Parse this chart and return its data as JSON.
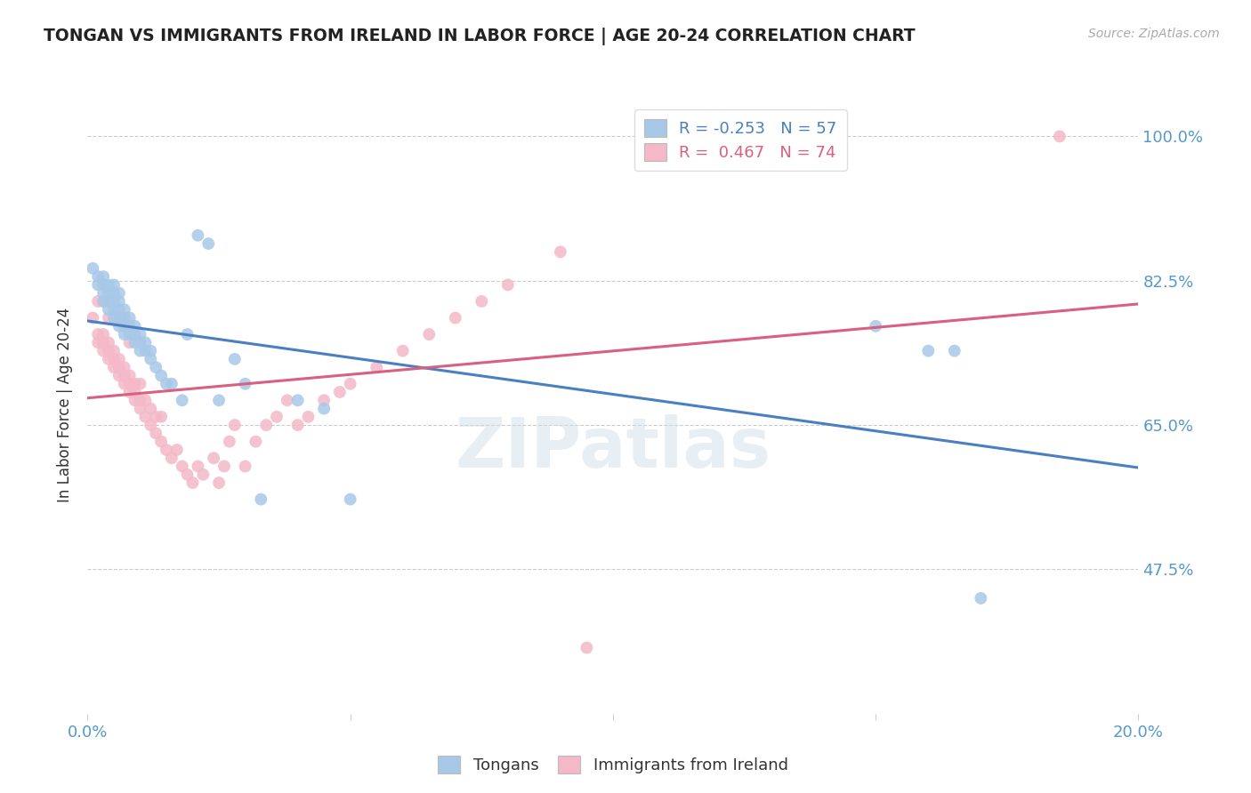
{
  "title": "TONGAN VS IMMIGRANTS FROM IRELAND IN LABOR FORCE | AGE 20-24 CORRELATION CHART",
  "source": "Source: ZipAtlas.com",
  "ylabel": "In Labor Force | Age 20-24",
  "xlim": [
    0.0,
    0.2
  ],
  "ylim": [
    0.3,
    1.05
  ],
  "blue_R": -0.253,
  "blue_N": 57,
  "pink_R": 0.467,
  "pink_N": 74,
  "blue_color": "#a8c8e8",
  "pink_color": "#f4b8c8",
  "blue_line_color": "#4a7fc1",
  "pink_line_color": "#d96080",
  "ytick_vals": [
    1.0,
    0.825,
    0.65,
    0.475
  ],
  "ytick_labels": [
    "100.0%",
    "82.5%",
    "65.0%",
    "47.5%"
  ],
  "blue_scatter_x": [
    0.001,
    0.002,
    0.002,
    0.003,
    0.003,
    0.003,
    0.003,
    0.004,
    0.004,
    0.004,
    0.004,
    0.005,
    0.005,
    0.005,
    0.005,
    0.005,
    0.006,
    0.006,
    0.006,
    0.006,
    0.006,
    0.007,
    0.007,
    0.007,
    0.007,
    0.008,
    0.008,
    0.008,
    0.009,
    0.009,
    0.009,
    0.01,
    0.01,
    0.01,
    0.011,
    0.011,
    0.012,
    0.012,
    0.013,
    0.014,
    0.015,
    0.016,
    0.018,
    0.019,
    0.021,
    0.023,
    0.025,
    0.028,
    0.03,
    0.033,
    0.04,
    0.045,
    0.05,
    0.15,
    0.16,
    0.165,
    0.17
  ],
  "blue_scatter_y": [
    0.84,
    0.82,
    0.83,
    0.8,
    0.81,
    0.82,
    0.83,
    0.79,
    0.8,
    0.81,
    0.82,
    0.78,
    0.79,
    0.8,
    0.81,
    0.82,
    0.77,
    0.78,
    0.79,
    0.8,
    0.81,
    0.76,
    0.77,
    0.78,
    0.79,
    0.76,
    0.77,
    0.78,
    0.75,
    0.76,
    0.77,
    0.74,
    0.75,
    0.76,
    0.74,
    0.75,
    0.73,
    0.74,
    0.72,
    0.71,
    0.7,
    0.7,
    0.68,
    0.76,
    0.88,
    0.87,
    0.68,
    0.73,
    0.7,
    0.56,
    0.68,
    0.67,
    0.56,
    0.77,
    0.74,
    0.74,
    0.44
  ],
  "pink_scatter_x": [
    0.001,
    0.002,
    0.002,
    0.002,
    0.003,
    0.003,
    0.003,
    0.003,
    0.004,
    0.004,
    0.004,
    0.004,
    0.005,
    0.005,
    0.005,
    0.005,
    0.006,
    0.006,
    0.006,
    0.006,
    0.007,
    0.007,
    0.007,
    0.007,
    0.008,
    0.008,
    0.008,
    0.008,
    0.009,
    0.009,
    0.009,
    0.01,
    0.01,
    0.01,
    0.011,
    0.011,
    0.012,
    0.012,
    0.013,
    0.013,
    0.014,
    0.014,
    0.015,
    0.016,
    0.017,
    0.018,
    0.019,
    0.02,
    0.021,
    0.022,
    0.024,
    0.025,
    0.026,
    0.027,
    0.028,
    0.03,
    0.032,
    0.034,
    0.036,
    0.038,
    0.04,
    0.042,
    0.045,
    0.048,
    0.05,
    0.055,
    0.06,
    0.065,
    0.07,
    0.075,
    0.08,
    0.09,
    0.095,
    0.185
  ],
  "pink_scatter_y": [
    0.78,
    0.75,
    0.76,
    0.8,
    0.74,
    0.75,
    0.76,
    0.8,
    0.73,
    0.74,
    0.75,
    0.78,
    0.72,
    0.73,
    0.74,
    0.78,
    0.71,
    0.72,
    0.73,
    0.78,
    0.7,
    0.71,
    0.72,
    0.78,
    0.69,
    0.7,
    0.71,
    0.75,
    0.68,
    0.69,
    0.7,
    0.67,
    0.68,
    0.7,
    0.66,
    0.68,
    0.65,
    0.67,
    0.64,
    0.66,
    0.63,
    0.66,
    0.62,
    0.61,
    0.62,
    0.6,
    0.59,
    0.58,
    0.6,
    0.59,
    0.61,
    0.58,
    0.6,
    0.63,
    0.65,
    0.6,
    0.63,
    0.65,
    0.66,
    0.68,
    0.65,
    0.66,
    0.68,
    0.69,
    0.7,
    0.72,
    0.74,
    0.76,
    0.78,
    0.8,
    0.82,
    0.86,
    0.38,
    1.0
  ]
}
